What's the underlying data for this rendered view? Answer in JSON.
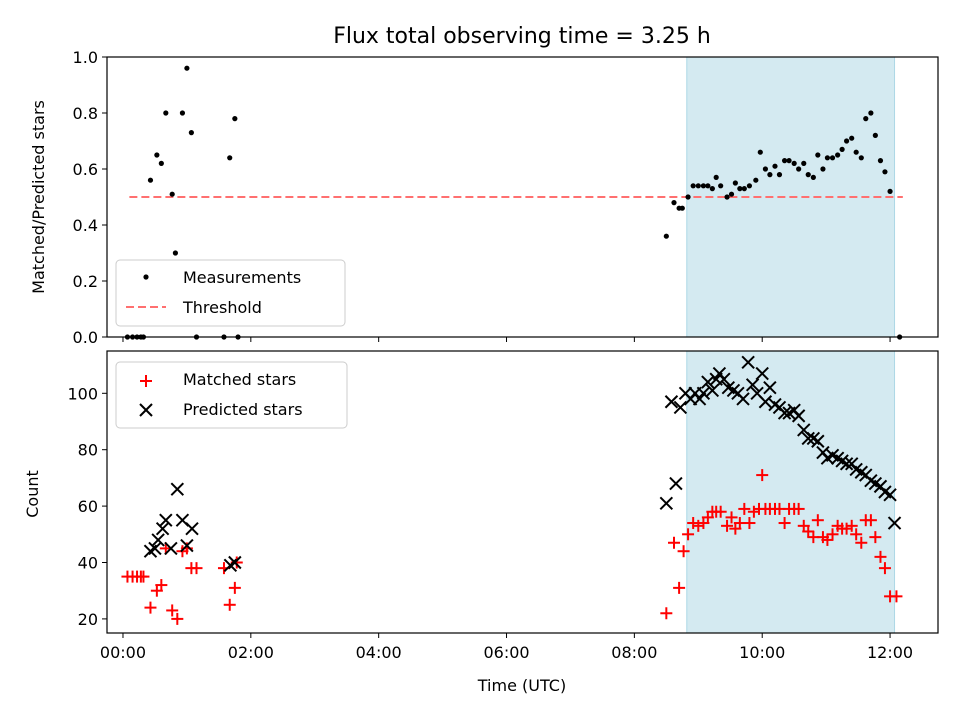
{
  "chart_data": [
    {
      "type": "scatter",
      "title": "Flux total observing time = 3.25 h",
      "xlabel": "",
      "ylabel": "Matched/Predicted stars",
      "xlim": [
        -0.25,
        12.75
      ],
      "ylim": [
        0,
        1.0
      ],
      "yticks": [
        "0.0",
        "0.2",
        "0.4",
        "0.6",
        "0.8",
        "1.0"
      ],
      "grid": false,
      "legend_loc": "lower-left",
      "shaded_region": {
        "x": [
          8.82,
          12.07
        ],
        "color": "#add8e6"
      },
      "colors": {
        "measurements": "#000000",
        "threshold": "#ff7070",
        "shade": "#d4eaf1"
      },
      "series": [
        {
          "name": "Measurements",
          "marker": "dot",
          "points": [
            [
              0.07,
              0.0
            ],
            [
              0.15,
              0.0
            ],
            [
              0.22,
              0.0
            ],
            [
              0.28,
              0.0
            ],
            [
              0.32,
              0.0
            ],
            [
              0.43,
              0.56
            ],
            [
              0.53,
              0.65
            ],
            [
              0.6,
              0.62
            ],
            [
              0.67,
              0.8
            ],
            [
              0.77,
              0.51
            ],
            [
              0.82,
              0.3
            ],
            [
              0.93,
              0.8
            ],
            [
              1.0,
              0.96
            ],
            [
              1.07,
              0.73
            ],
            [
              1.15,
              0.0
            ],
            [
              1.58,
              0.0
            ],
            [
              1.67,
              0.64
            ],
            [
              1.75,
              0.78
            ],
            [
              1.8,
              0.0
            ],
            [
              8.5,
              0.36
            ],
            [
              8.62,
              0.48
            ],
            [
              8.7,
              0.46
            ],
            [
              8.75,
              0.46
            ],
            [
              8.84,
              0.5
            ],
            [
              8.92,
              0.54
            ],
            [
              9.0,
              0.54
            ],
            [
              9.08,
              0.54
            ],
            [
              9.15,
              0.54
            ],
            [
              9.22,
              0.53
            ],
            [
              9.28,
              0.57
            ],
            [
              9.35,
              0.54
            ],
            [
              9.45,
              0.5
            ],
            [
              9.52,
              0.51
            ],
            [
              9.58,
              0.55
            ],
            [
              9.65,
              0.53
            ],
            [
              9.72,
              0.53
            ],
            [
              9.8,
              0.54
            ],
            [
              9.9,
              0.56
            ],
            [
              9.97,
              0.66
            ],
            [
              10.05,
              0.6
            ],
            [
              10.12,
              0.58
            ],
            [
              10.2,
              0.61
            ],
            [
              10.27,
              0.58
            ],
            [
              10.35,
              0.63
            ],
            [
              10.42,
              0.63
            ],
            [
              10.5,
              0.62
            ],
            [
              10.57,
              0.6
            ],
            [
              10.65,
              0.62
            ],
            [
              10.72,
              0.58
            ],
            [
              10.8,
              0.57
            ],
            [
              10.87,
              0.65
            ],
            [
              10.95,
              0.6
            ],
            [
              11.02,
              0.64
            ],
            [
              11.1,
              0.64
            ],
            [
              11.18,
              0.65
            ],
            [
              11.25,
              0.67
            ],
            [
              11.32,
              0.7
            ],
            [
              11.4,
              0.71
            ],
            [
              11.47,
              0.66
            ],
            [
              11.55,
              0.64
            ],
            [
              11.62,
              0.78
            ],
            [
              11.7,
              0.8
            ],
            [
              11.77,
              0.72
            ],
            [
              11.85,
              0.63
            ],
            [
              11.92,
              0.59
            ],
            [
              12.0,
              0.52
            ],
            [
              12.15,
              0.0
            ]
          ]
        },
        {
          "name": "Threshold",
          "line": "dashed",
          "points": [
            [
              0.1,
              0.5
            ],
            [
              12.2,
              0.5
            ]
          ]
        }
      ]
    },
    {
      "type": "scatter",
      "title": "",
      "xlabel": "Time (UTC)",
      "ylabel": "Count",
      "xlim": [
        -0.25,
        12.75
      ],
      "ylim": [
        15,
        115
      ],
      "xticks": [
        {
          "v": 0,
          "l": "00:00"
        },
        {
          "v": 2,
          "l": "02:00"
        },
        {
          "v": 4,
          "l": "04:00"
        },
        {
          "v": 6,
          "l": "06:00"
        },
        {
          "v": 8,
          "l": "08:00"
        },
        {
          "v": 10,
          "l": "10:00"
        },
        {
          "v": 12,
          "l": "12:00"
        }
      ],
      "yticks": [
        20,
        40,
        60,
        80,
        100
      ],
      "grid": false,
      "legend_loc": "upper-left",
      "shaded_region": {
        "x": [
          8.82,
          12.07
        ],
        "color": "#add8e6"
      },
      "colors": {
        "matched": "#ff0000",
        "predicted": "#000000",
        "shade": "#d4eaf1"
      },
      "series": [
        {
          "name": "Matched stars",
          "marker": "plus",
          "points": [
            [
              0.07,
              35
            ],
            [
              0.15,
              35
            ],
            [
              0.22,
              35
            ],
            [
              0.28,
              35
            ],
            [
              0.32,
              35
            ],
            [
              0.43,
              24
            ],
            [
              0.53,
              30
            ],
            [
              0.6,
              32
            ],
            [
              0.67,
              45
            ],
            [
              0.77,
              23
            ],
            [
              0.85,
              20
            ],
            [
              0.93,
              44
            ],
            [
              1.0,
              45
            ],
            [
              1.07,
              38
            ],
            [
              1.15,
              38
            ],
            [
              1.58,
              38
            ],
            [
              1.67,
              25
            ],
            [
              1.75,
              31
            ],
            [
              1.78,
              40
            ],
            [
              8.5,
              22
            ],
            [
              8.62,
              47
            ],
            [
              8.7,
              31
            ],
            [
              8.77,
              44
            ],
            [
              8.84,
              50
            ],
            [
              8.92,
              54
            ],
            [
              9.0,
              53
            ],
            [
              9.08,
              54
            ],
            [
              9.15,
              56
            ],
            [
              9.22,
              58
            ],
            [
              9.28,
              58
            ],
            [
              9.35,
              58
            ],
            [
              9.45,
              53
            ],
            [
              9.52,
              56
            ],
            [
              9.58,
              52
            ],
            [
              9.65,
              54
            ],
            [
              9.72,
              59
            ],
            [
              9.8,
              54
            ],
            [
              9.87,
              58
            ],
            [
              9.95,
              59
            ],
            [
              10.0,
              71
            ],
            [
              10.05,
              59
            ],
            [
              10.12,
              59
            ],
            [
              10.2,
              59
            ],
            [
              10.27,
              59
            ],
            [
              10.35,
              54
            ],
            [
              10.42,
              59
            ],
            [
              10.5,
              59
            ],
            [
              10.57,
              59
            ],
            [
              10.65,
              53
            ],
            [
              10.72,
              51
            ],
            [
              10.8,
              49
            ],
            [
              10.87,
              55
            ],
            [
              10.95,
              49
            ],
            [
              11.02,
              48
            ],
            [
              11.1,
              50
            ],
            [
              11.18,
              53
            ],
            [
              11.25,
              52
            ],
            [
              11.32,
              52
            ],
            [
              11.4,
              53
            ],
            [
              11.47,
              50
            ],
            [
              11.55,
              47
            ],
            [
              11.62,
              55
            ],
            [
              11.7,
              55
            ],
            [
              11.77,
              49
            ],
            [
              11.85,
              42
            ],
            [
              11.92,
              38
            ],
            [
              12.0,
              28
            ],
            [
              12.1,
              28
            ]
          ]
        },
        {
          "name": "Predicted stars",
          "marker": "x",
          "points": [
            [
              0.43,
              44
            ],
            [
              0.5,
              45
            ],
            [
              0.55,
              48
            ],
            [
              0.62,
              52
            ],
            [
              0.67,
              55
            ],
            [
              0.75,
              45
            ],
            [
              0.85,
              66
            ],
            [
              0.93,
              55
            ],
            [
              1.0,
              46
            ],
            [
              1.08,
              52
            ],
            [
              1.68,
              39
            ],
            [
              1.75,
              40
            ],
            [
              8.5,
              61
            ],
            [
              8.58,
              97
            ],
            [
              8.65,
              68
            ],
            [
              8.72,
              95
            ],
            [
              8.8,
              100
            ],
            [
              8.88,
              98
            ],
            [
              8.95,
              100
            ],
            [
              9.02,
              98
            ],
            [
              9.08,
              100
            ],
            [
              9.15,
              104
            ],
            [
              9.22,
              101
            ],
            [
              9.28,
              105
            ],
            [
              9.33,
              107
            ],
            [
              9.4,
              105
            ],
            [
              9.47,
              102
            ],
            [
              9.55,
              101
            ],
            [
              9.62,
              100
            ],
            [
              9.7,
              98
            ],
            [
              9.78,
              111
            ],
            [
              9.85,
              103
            ],
            [
              9.92,
              100
            ],
            [
              10.0,
              107
            ],
            [
              10.05,
              97
            ],
            [
              10.12,
              102
            ],
            [
              10.2,
              96
            ],
            [
              10.27,
              95
            ],
            [
              10.35,
              93
            ],
            [
              10.42,
              93
            ],
            [
              10.5,
              94
            ],
            [
              10.57,
              92
            ],
            [
              10.65,
              87
            ],
            [
              10.72,
              84
            ],
            [
              10.8,
              84
            ],
            [
              10.87,
              83
            ],
            [
              10.95,
              79
            ],
            [
              11.02,
              77
            ],
            [
              11.1,
              78
            ],
            [
              11.18,
              77
            ],
            [
              11.25,
              76
            ],
            [
              11.32,
              75
            ],
            [
              11.4,
              75
            ],
            [
              11.47,
              73
            ],
            [
              11.55,
              72
            ],
            [
              11.62,
              71
            ],
            [
              11.7,
              69
            ],
            [
              11.77,
              68
            ],
            [
              11.85,
              67
            ],
            [
              11.92,
              65
            ],
            [
              12.0,
              64
            ],
            [
              12.07,
              54
            ]
          ]
        }
      ]
    }
  ]
}
